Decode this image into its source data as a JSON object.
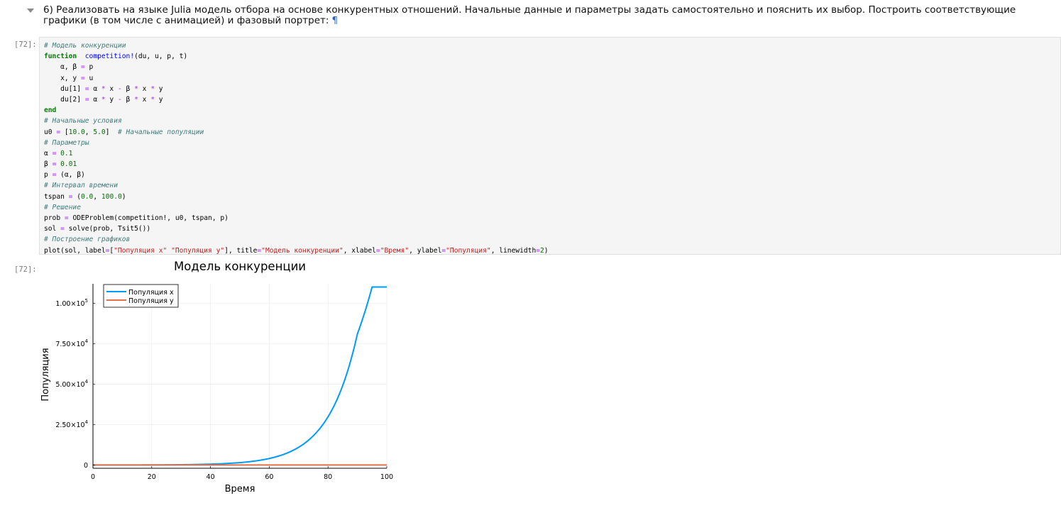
{
  "markdown": {
    "text": "6) Реализовать на языке Julia модель отбора на основе конкурентных отношений. Начальные данные и параметры задать самостоятельно и пояснить их выбор. Построить соответствующие графики (в том числе с анимацией) и фазовый портрет:",
    "pilcrow": "¶"
  },
  "input_prompt": "[72]:",
  "output_prompt": "[72]:",
  "code_lines": [
    [
      [
        "c-cm",
        "# Модель конкуренции"
      ]
    ],
    [
      [
        "c-kw",
        "function"
      ],
      [
        "",
        "  "
      ],
      [
        "c-fn",
        "competition!"
      ],
      [
        "",
        "(du, u, p, t)"
      ]
    ],
    [
      [
        "",
        "    α, β "
      ],
      [
        "c-op",
        "="
      ],
      [
        "",
        " p"
      ]
    ],
    [
      [
        "",
        "    x, y "
      ],
      [
        "c-op",
        "="
      ],
      [
        "",
        " u"
      ]
    ],
    [
      [
        "",
        "    du[1] "
      ],
      [
        "c-op",
        "="
      ],
      [
        "",
        " α "
      ],
      [
        "c-op",
        "*"
      ],
      [
        "",
        " x "
      ],
      [
        "c-op",
        "-"
      ],
      [
        "",
        " β "
      ],
      [
        "c-op",
        "*"
      ],
      [
        "",
        " x "
      ],
      [
        "c-op",
        "*"
      ],
      [
        "",
        " y"
      ]
    ],
    [
      [
        "",
        "    du[2] "
      ],
      [
        "c-op",
        "="
      ],
      [
        "",
        " α "
      ],
      [
        "c-op",
        "*"
      ],
      [
        "",
        " y "
      ],
      [
        "c-op",
        "-"
      ],
      [
        "",
        " β "
      ],
      [
        "c-op",
        "*"
      ],
      [
        "",
        " x "
      ],
      [
        "c-op",
        "*"
      ],
      [
        "",
        " y"
      ]
    ],
    [
      [
        "c-kw",
        "end"
      ]
    ],
    [
      [
        "c-cm",
        "# Начальные условия"
      ]
    ],
    [
      [
        "",
        "u0 "
      ],
      [
        "c-op",
        "="
      ],
      [
        "",
        " ["
      ],
      [
        "c-nm",
        "10.0"
      ],
      [
        "",
        ", "
      ],
      [
        "c-nm",
        "5.0"
      ],
      [
        "",
        "]  "
      ],
      [
        "c-cm",
        "# Начальные популяции"
      ]
    ],
    [
      [
        "c-cm",
        "# Параметры"
      ]
    ],
    [
      [
        "",
        "α "
      ],
      [
        "c-op",
        "="
      ],
      [
        "",
        " "
      ],
      [
        "c-nm",
        "0.1"
      ]
    ],
    [
      [
        "",
        "β "
      ],
      [
        "c-op",
        "="
      ],
      [
        "",
        " "
      ],
      [
        "c-nm",
        "0.01"
      ]
    ],
    [
      [
        "",
        "p "
      ],
      [
        "c-op",
        "="
      ],
      [
        "",
        " (α, β)"
      ]
    ],
    [
      [
        "c-cm",
        "# Интервал времени"
      ]
    ],
    [
      [
        "",
        "tspan "
      ],
      [
        "c-op",
        "="
      ],
      [
        "",
        " ("
      ],
      [
        "c-nm",
        "0.0"
      ],
      [
        "",
        ", "
      ],
      [
        "c-nm",
        "100.0"
      ],
      [
        "",
        ")"
      ]
    ],
    [
      [
        "c-cm",
        "# Решение"
      ]
    ],
    [
      [
        "",
        "prob "
      ],
      [
        "c-op",
        "="
      ],
      [
        "",
        " ODEProblem(competition!, u0, tspan, p)"
      ]
    ],
    [
      [
        "",
        "sol "
      ],
      [
        "c-op",
        "="
      ],
      [
        "",
        " solve(prob, Tsit5())"
      ]
    ],
    [
      [
        "c-cm",
        "# Построение графиков"
      ]
    ],
    [
      [
        "",
        "plot(sol, label"
      ],
      [
        "c-op",
        "="
      ],
      [
        "",
        "["
      ],
      [
        "c-st",
        "\"Популяция x\""
      ],
      [
        "",
        " "
      ],
      [
        "c-st",
        "\"Популяция y\""
      ],
      [
        "",
        "], title"
      ],
      [
        "c-op",
        "="
      ],
      [
        "c-st",
        "\"Модель конкуренции\""
      ],
      [
        "",
        ", xlabel"
      ],
      [
        "c-op",
        "="
      ],
      [
        "c-st",
        "\"Время\""
      ],
      [
        "",
        ", ylabel"
      ],
      [
        "c-op",
        "="
      ],
      [
        "c-st",
        "\"Популяция\""
      ],
      [
        "",
        ", linewidth"
      ],
      [
        "c-op",
        "="
      ],
      [
        "c-nm",
        "2"
      ],
      [
        "",
        ")"
      ]
    ]
  ],
  "chart_data": {
    "type": "line",
    "title": "Модель конкуренции",
    "xlabel": "Время",
    "ylabel": "Популяция",
    "xlim": [
      0,
      100
    ],
    "ylim": [
      -2000,
      112000
    ],
    "x_ticks": [
      0,
      20,
      40,
      60,
      80,
      100
    ],
    "y_ticks": [
      {
        "value": 0,
        "mantissa": "0",
        "exp": ""
      },
      {
        "value": 25000,
        "mantissa": "2.50×10",
        "exp": "4"
      },
      {
        "value": 50000,
        "mantissa": "5.00×10",
        "exp": "4"
      },
      {
        "value": 75000,
        "mantissa": "7.50×10",
        "exp": "4"
      },
      {
        "value": 100000,
        "mantissa": "1.00×10",
        "exp": "5"
      }
    ],
    "grid": true,
    "legend_position": "top-left",
    "series": [
      {
        "name": "Популяция x",
        "color": "#009af9",
        "x": [
          0,
          10,
          20,
          30,
          40,
          50,
          55,
          60,
          65,
          70,
          75,
          80,
          85,
          90,
          95,
          100
        ],
        "values": [
          10,
          27,
          74,
          201,
          546,
          1484,
          2447,
          4034,
          6651,
          10966,
          18080,
          29810,
          49149,
          81031,
          110000,
          110000
        ]
      },
      {
        "name": "Популяция y",
        "color": "#e26f46",
        "x": [
          0,
          100
        ],
        "values": [
          5,
          5
        ]
      }
    ]
  }
}
